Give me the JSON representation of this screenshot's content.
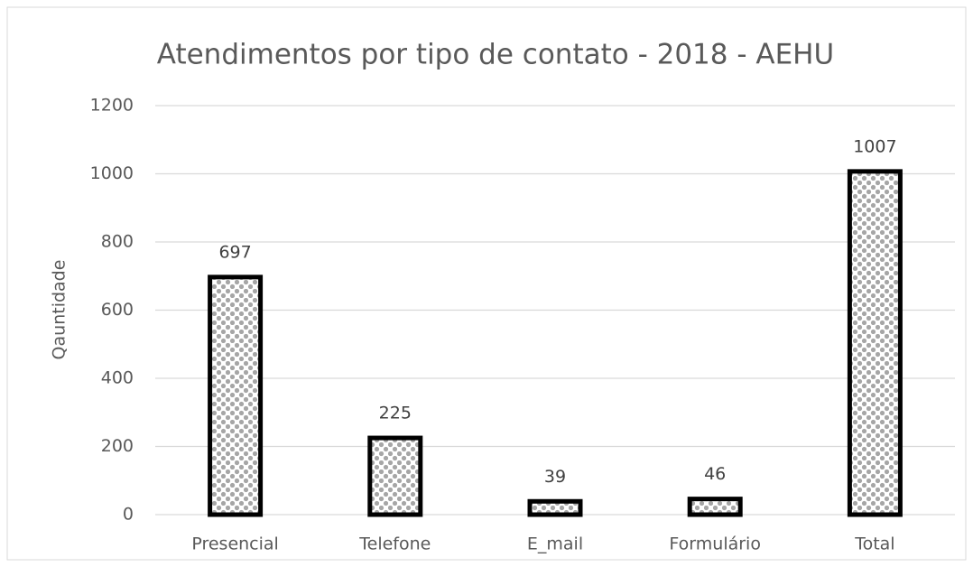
{
  "chart_data": {
    "type": "bar",
    "title": "Atendimentos por tipo de contato - 2018 - AEHU",
    "ylabel": "Qauntidade",
    "categories": [
      "Presencial",
      "Telefone",
      "E_mail",
      "Formulário",
      "Total"
    ],
    "values": [
      697,
      225,
      39,
      46,
      1007
    ],
    "color": "#a6a6a6",
    "ylim": [
      0,
      1200
    ],
    "yticks": [
      0,
      200,
      400,
      600,
      800,
      1000,
      1200
    ],
    "grid": true
  }
}
